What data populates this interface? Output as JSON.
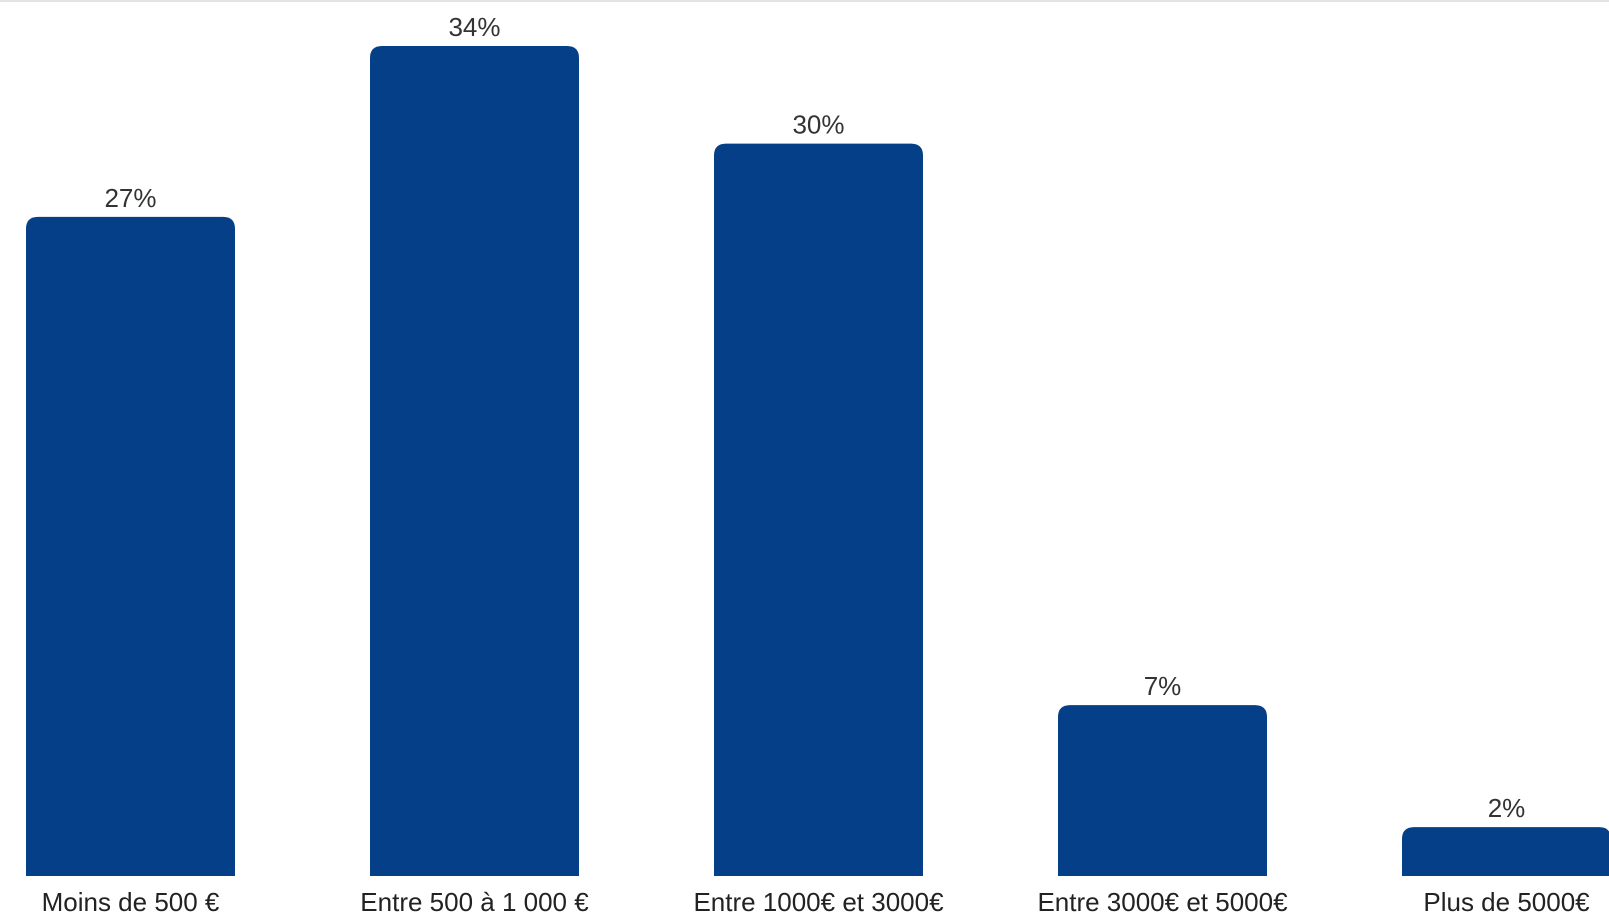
{
  "chart_data": {
    "type": "bar",
    "categories": [
      "Moins de 500 €",
      "Entre 500 à 1 000 €",
      "Entre 1000€ et 3000€",
      "Entre 3000€ et 5000€",
      "Plus de 5000€"
    ],
    "values": [
      27,
      34,
      30,
      7,
      2
    ],
    "value_labels": [
      "27%",
      "34%",
      "30%",
      "7%",
      "2%"
    ],
    "unit": "%",
    "ylim": [
      0,
      34
    ],
    "grid": false,
    "legend": "none",
    "bar_color": "#053f87"
  }
}
